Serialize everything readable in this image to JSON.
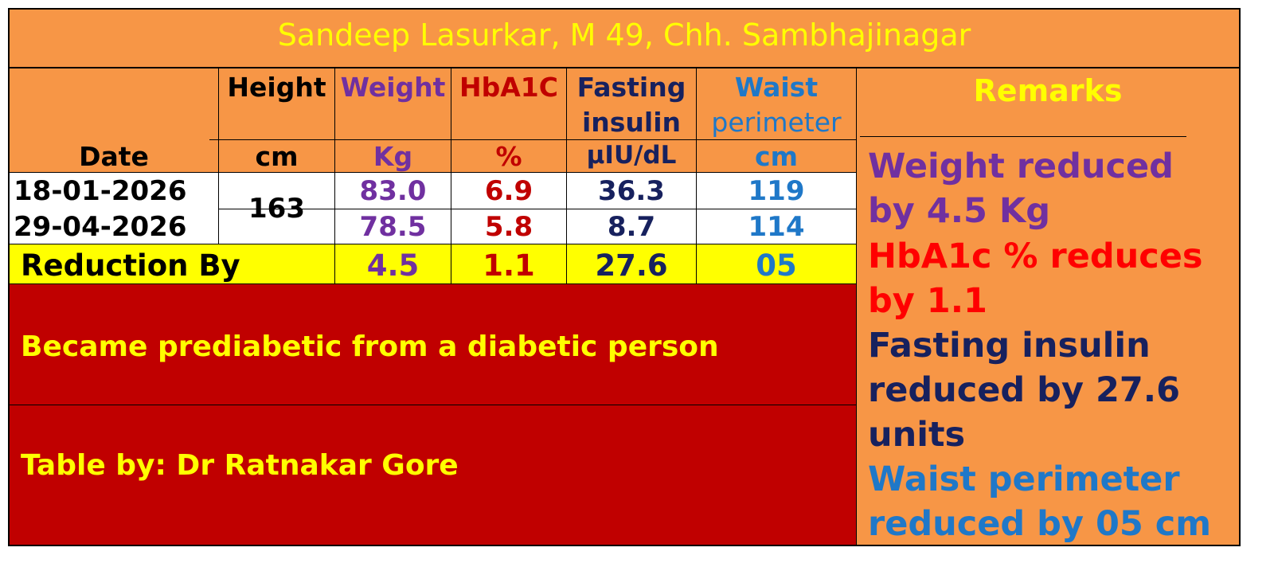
{
  "title": "Sandeep Lasurkar, M 49, Chh. Sambhajinagar",
  "columns": {
    "height": {
      "label": "Height",
      "unit": "cm"
    },
    "weight": {
      "label": "Weight",
      "unit": "Kg"
    },
    "hba1c": {
      "label": "HbA1C",
      "unit": "%"
    },
    "fasting_insulin": {
      "label1": "Fasting",
      "label2": "insulin",
      "unit": "µIU/dL"
    },
    "waist": {
      "label1": "Waist",
      "label2": "perimeter",
      "unit": "cm"
    },
    "date": {
      "label": "Date"
    },
    "remarks": {
      "label": "Remarks"
    }
  },
  "rows": [
    {
      "date": "18-01-2026",
      "weight": "83.0",
      "hba1c": "6.9",
      "insulin": "36.3",
      "waist": "119"
    },
    {
      "date": "29-04-2026",
      "weight": "78.5",
      "hba1c": "5.8",
      "insulin": "8.7",
      "waist": "114"
    }
  ],
  "height_value": "163",
  "reduction": {
    "label": "Reduction By",
    "weight": "4.5",
    "hba1c": "1.1",
    "insulin": "27.6",
    "waist": "05"
  },
  "conclusion": "Became prediabetic from a diabetic person",
  "credit": "Table by: Dr Ratnakar Gore",
  "remarks": {
    "weight1": "Weight reduced",
    "weight2": "by 4.5 Kg",
    "hba1c1": "HbA1c % reduces",
    "hba1c2": "by 1.1",
    "insulin1": "Fasting insulin",
    "insulin2": "reduced by 27.6",
    "insulin3": "units",
    "waist1": "Waist perimeter",
    "waist2": "reduced by 05 cm"
  },
  "colors": {
    "background": "#f79646",
    "title_text": "#ffff00",
    "weight": "#7030a0",
    "hba1c": "#c00000",
    "insulin": "#17215e",
    "waist": "#1f78c8",
    "highlight_row": "#ffff00",
    "conclusion_bg": "#c00000",
    "remark_hba1c": "#ff0000"
  }
}
